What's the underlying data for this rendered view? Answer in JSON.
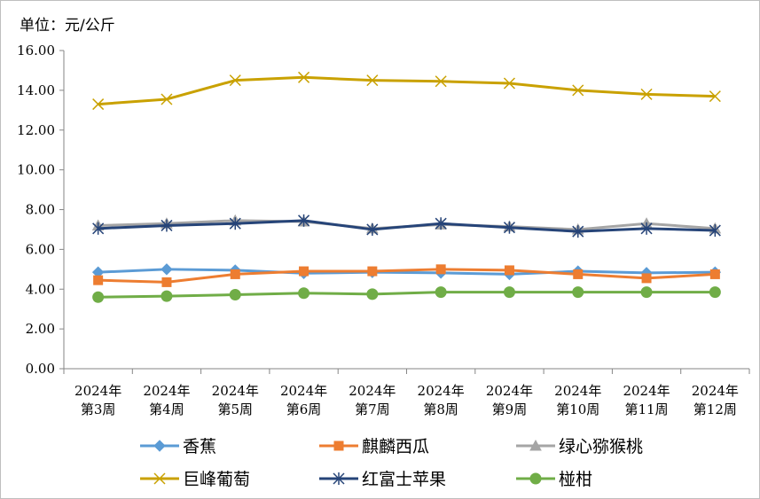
{
  "unit_label": "单位：元/公斤",
  "chart_data": {
    "type": "line",
    "ylabel": "单位：元/公斤",
    "ylim": [
      0,
      16
    ],
    "yticks": [
      "0.00",
      "2.00",
      "4.00",
      "6.00",
      "8.00",
      "10.00",
      "12.00",
      "14.00",
      "16.00"
    ],
    "grid": false,
    "legend_position": "bottom",
    "categories": [
      [
        "2024年",
        "第3周"
      ],
      [
        "2024年",
        "第4周"
      ],
      [
        "2024年",
        "第5周"
      ],
      [
        "2024年",
        "第6周"
      ],
      [
        "2024年",
        "第7周"
      ],
      [
        "2024年",
        "第8周"
      ],
      [
        "2024年",
        "第9周"
      ],
      [
        "2024年",
        "第10周"
      ],
      [
        "2024年",
        "第11周"
      ],
      [
        "2024年",
        "第12周"
      ]
    ],
    "series": [
      {
        "name": "香蕉",
        "color": "#5b9bd5",
        "marker": "diamond",
        "values": [
          4.85,
          5.0,
          4.95,
          4.8,
          4.85,
          4.82,
          4.75,
          4.9,
          4.82,
          4.85
        ]
      },
      {
        "name": "麒麟西瓜",
        "color": "#ed7d31",
        "marker": "square",
        "values": [
          4.45,
          4.35,
          4.75,
          4.9,
          4.9,
          5.0,
          4.95,
          4.75,
          4.55,
          4.75
        ]
      },
      {
        "name": "绿心猕猴桃",
        "color": "#a5a5a5",
        "marker": "triangle",
        "values": [
          7.2,
          7.3,
          7.45,
          7.4,
          7.05,
          7.25,
          7.15,
          7.0,
          7.3,
          7.05
        ]
      },
      {
        "name": "巨峰葡萄",
        "color": "#c9a100",
        "marker": "x",
        "values": [
          13.3,
          13.55,
          14.5,
          14.65,
          14.5,
          14.45,
          14.35,
          14.0,
          13.8,
          13.7
        ]
      },
      {
        "name": "红富士苹果",
        "color": "#264478",
        "marker": "star",
        "values": [
          7.05,
          7.2,
          7.3,
          7.45,
          7.0,
          7.3,
          7.1,
          6.9,
          7.05,
          6.95
        ]
      },
      {
        "name": "椪柑",
        "color": "#70ad47",
        "marker": "circle",
        "values": [
          3.6,
          3.65,
          3.72,
          3.8,
          3.75,
          3.85,
          3.85,
          3.85,
          3.85,
          3.85
        ]
      }
    ]
  }
}
